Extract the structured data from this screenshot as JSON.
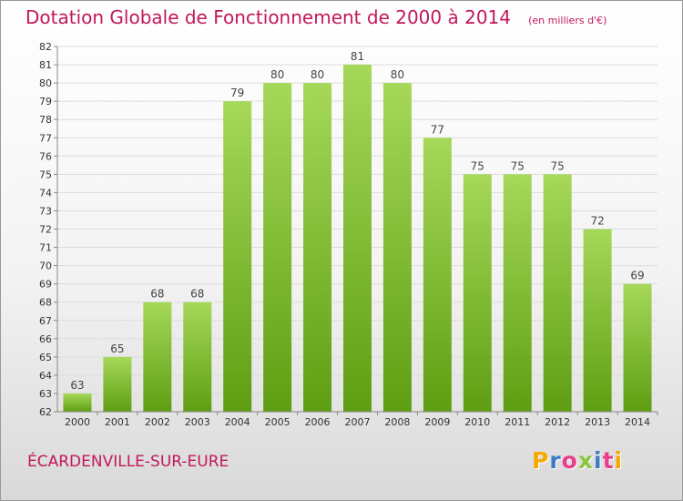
{
  "header": {
    "title": "Dotation Globale de Fonctionnement de 2000 à 2014",
    "unit": "(en milliers d'€)"
  },
  "footer": {
    "city": "ÉCARDENVILLE-SUR-EURE",
    "logo_text": "Proxiti",
    "logo_colors": [
      "#f5a800",
      "#3b7dc4",
      "#e83e8c",
      "#8cc63f",
      "#3b7dc4",
      "#e83e8c",
      "#f5a800"
    ]
  },
  "colors": {
    "title": "#c2185b",
    "bar_light": "#a6d85a",
    "bar_dark": "#5e9e12",
    "grid": "#dcdcdc",
    "axis": "#888888"
  },
  "chart_data": {
    "type": "bar",
    "categories": [
      "2000",
      "2001",
      "2002",
      "2003",
      "2004",
      "2005",
      "2006",
      "2007",
      "2008",
      "2009",
      "2010",
      "2011",
      "2012",
      "2013",
      "2014"
    ],
    "values": [
      63,
      65,
      68,
      68,
      79,
      80,
      80,
      81,
      80,
      77,
      75,
      75,
      75,
      72,
      69
    ],
    "ylim": [
      62,
      82
    ],
    "yticks": [
      62,
      63,
      64,
      65,
      66,
      67,
      68,
      69,
      70,
      71,
      72,
      73,
      74,
      75,
      76,
      77,
      78,
      79,
      80,
      81,
      82
    ],
    "grid": true,
    "data_labels": true
  }
}
